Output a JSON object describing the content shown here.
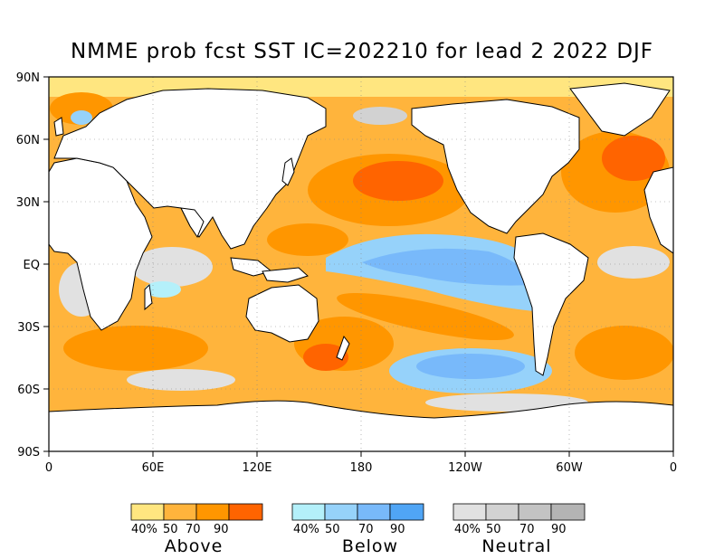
{
  "title": "NMME prob fcst SST IC=202210 for lead 2 2022 DJF",
  "map": {
    "lat_ticks": [
      "90N",
      "60N",
      "30N",
      "EQ",
      "30S",
      "60S",
      "90S"
    ],
    "lon_ticks": [
      "0",
      "60E",
      "120E",
      "180",
      "120W",
      "60W",
      "0"
    ],
    "colors": {
      "land": "#ffffff",
      "above": [
        "#ffe680",
        "#ffb43c",
        "#ff9600",
        "#ff6400"
      ],
      "below": [
        "#b4f0fa",
        "#96d2fa",
        "#78b9fa",
        "#50a5f5"
      ],
      "neutral": [
        "#e1e1e1",
        "#d2d2d2",
        "#c3c3c3",
        "#b4b4b4"
      ]
    }
  },
  "legend": {
    "above": {
      "title": "Above",
      "labels": [
        "40%",
        "50",
        "70",
        "90"
      ]
    },
    "below": {
      "title": "Below",
      "labels": [
        "40%",
        "50",
        "70",
        "90"
      ]
    },
    "neutral": {
      "title": "Neutral",
      "labels": [
        "40%",
        "50",
        "70",
        "90"
      ]
    }
  }
}
